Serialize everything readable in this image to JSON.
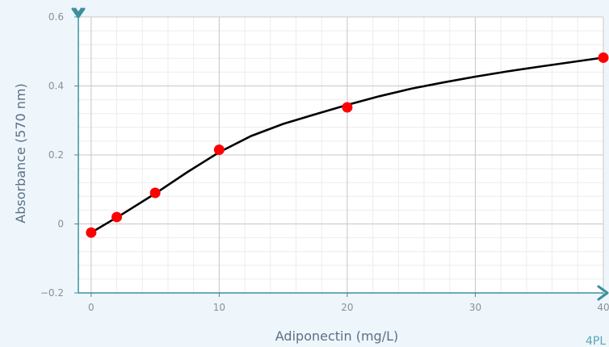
{
  "chart_data": {
    "type": "scatter",
    "xlabel": "Adiponectin (mg/L)",
    "ylabel": "Absorbance (570 nm)",
    "xlim": [
      -1,
      40
    ],
    "ylim": [
      -0.2,
      0.6
    ],
    "xticks": [
      0,
      10,
      20,
      30,
      40
    ],
    "yticks": [
      -0.2,
      0,
      0.2,
      0.4,
      0.6
    ],
    "xtick_labels": [
      "0",
      "10",
      "20",
      "30",
      "40"
    ],
    "ytick_labels": [
      "−0.2",
      "0",
      "0.2",
      "0.4",
      "0.6"
    ],
    "grid": true,
    "series": [
      {
        "kind": "points",
        "color": "#ff0000",
        "x": [
          0,
          2,
          5,
          10,
          20,
          40
        ],
        "y": [
          -0.025,
          0.02,
          0.09,
          0.215,
          0.338,
          0.482
        ]
      },
      {
        "kind": "fit-curve",
        "color": "#000000",
        "x": [
          0,
          2.5,
          5,
          7.5,
          10,
          12.5,
          15,
          17.5,
          20,
          22.5,
          25,
          27.5,
          30,
          32.5,
          35,
          37.5,
          40
        ],
        "y": [
          -0.025,
          0.03,
          0.088,
          0.15,
          0.208,
          0.255,
          0.29,
          0.318,
          0.345,
          0.37,
          0.392,
          0.41,
          0.427,
          0.442,
          0.456,
          0.469,
          0.482
        ]
      }
    ]
  },
  "model_label": "4PL",
  "colors": {
    "background": "#eef6fc",
    "plot_area": "#ffffff",
    "axis": "#3d8f9c",
    "grid_major": "#c8c8c8",
    "grid_minor": "#ececec"
  },
  "icons": {
    "y_axis_handle": "y-axis-range-handle-icon",
    "x_axis_handle": "x-axis-range-handle-icon"
  }
}
